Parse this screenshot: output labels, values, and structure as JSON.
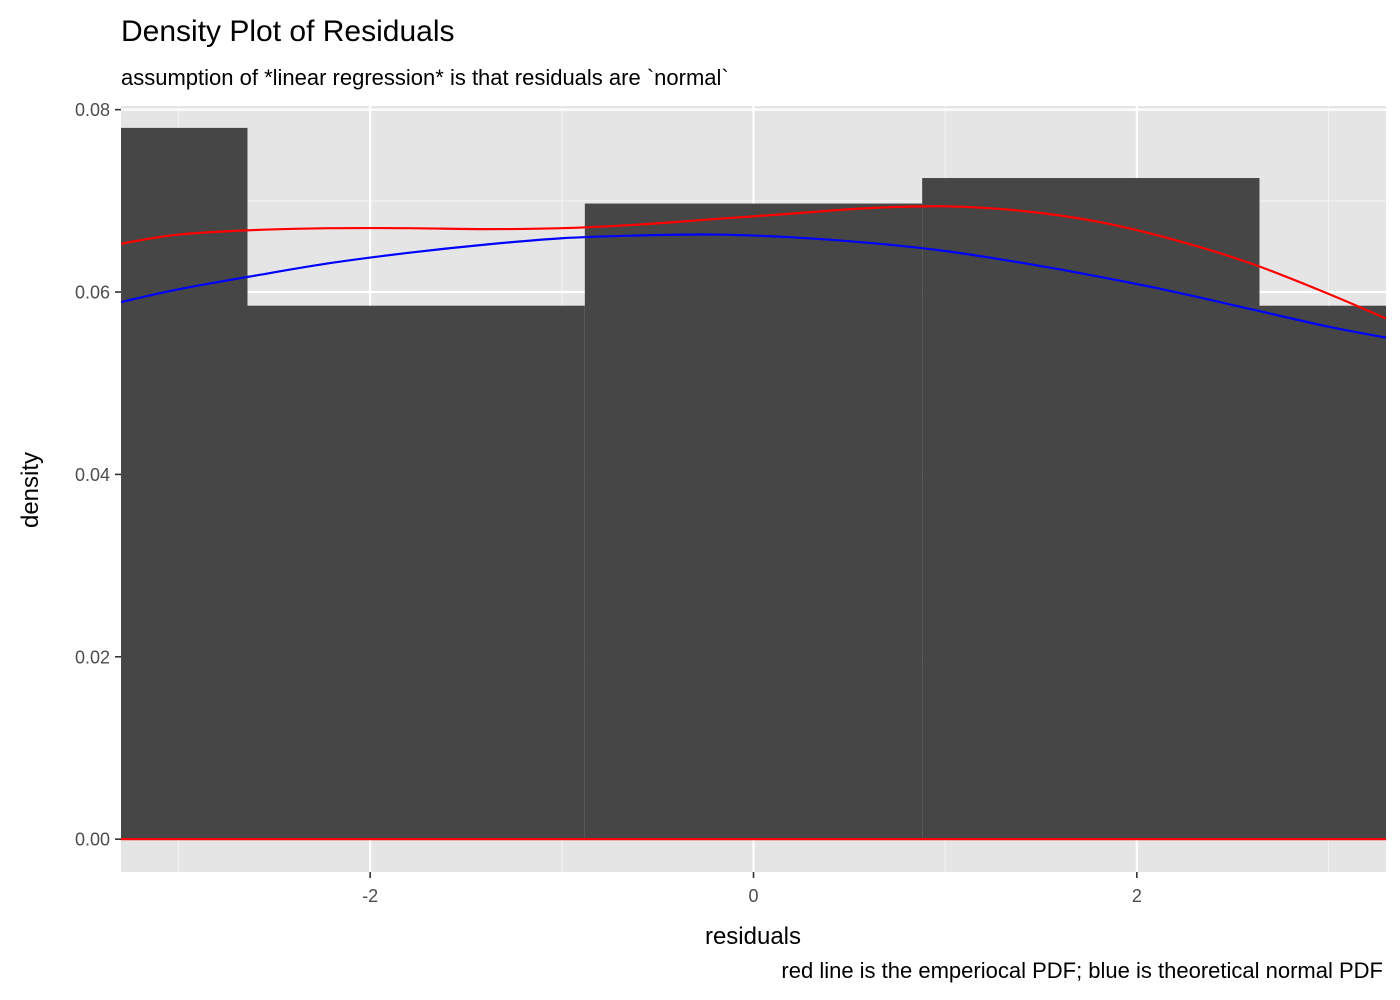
{
  "chart_data": {
    "type": "histogram",
    "title": "Density Plot of Residuals",
    "subtitle": "assumption of *linear regression* is that residuals are `normal`",
    "xlabel": "residuals",
    "ylabel": "density",
    "caption": "red line is the emperiocal PDF; blue is theoretical normal PDF",
    "xlim": [
      -3.3,
      3.3
    ],
    "ylim": [
      -0.0036,
      0.0804
    ],
    "x_ticks": [
      -2,
      0,
      2
    ],
    "x_tick_labels": [
      "-2",
      "0",
      "2"
    ],
    "y_ticks": [
      0,
      0.02,
      0.04,
      0.06,
      0.08
    ],
    "y_tick_labels": [
      "0.00",
      "0.02",
      "0.04",
      "0.06",
      "0.08"
    ],
    "grid": true,
    "bars": [
      {
        "x0": -3.52,
        "x1": -2.64,
        "density": 0.078
      },
      {
        "x0": -2.64,
        "x1": -0.88,
        "density": 0.0585
      },
      {
        "x0": -0.88,
        "x1": 0.88,
        "density": 0.0697
      },
      {
        "x0": 0.88,
        "x1": 2.64,
        "density": 0.0725
      },
      {
        "x0": 2.64,
        "x1": 4.4,
        "density": 0.0585
      }
    ],
    "series": [
      {
        "type": "line",
        "color": "#ff0000",
        "x": [
          -3.3,
          -3.0,
          -2.6,
          -2.2,
          -1.8,
          -1.4,
          -1.0,
          -0.6,
          -0.2,
          0.2,
          0.6,
          1.0,
          1.4,
          1.8,
          2.2,
          2.6,
          3.0,
          3.3
        ],
        "y": [
          0.0653,
          0.0663,
          0.0668,
          0.067,
          0.067,
          0.0669,
          0.067,
          0.0674,
          0.068,
          0.0686,
          0.0692,
          0.0694,
          0.0689,
          0.0677,
          0.0657,
          0.0631,
          0.0598,
          0.0571
        ]
      },
      {
        "type": "line",
        "color": "#0000ff",
        "x": [
          -3.3,
          -3.0,
          -2.6,
          -2.2,
          -1.8,
          -1.4,
          -1.0,
          -0.6,
          -0.2,
          0.2,
          0.6,
          1.0,
          1.4,
          1.8,
          2.2,
          2.6,
          3.0,
          3.3
        ],
        "y": [
          0.0589,
          0.0603,
          0.0618,
          0.0632,
          0.0643,
          0.0652,
          0.0659,
          0.0662,
          0.0663,
          0.066,
          0.0654,
          0.0645,
          0.0632,
          0.0617,
          0.06,
          0.0581,
          0.0562,
          0.055
        ]
      },
      {
        "type": "line",
        "color": "#ff0000",
        "x": [
          -3.3,
          3.3
        ],
        "y": [
          0,
          0
        ]
      }
    ]
  }
}
